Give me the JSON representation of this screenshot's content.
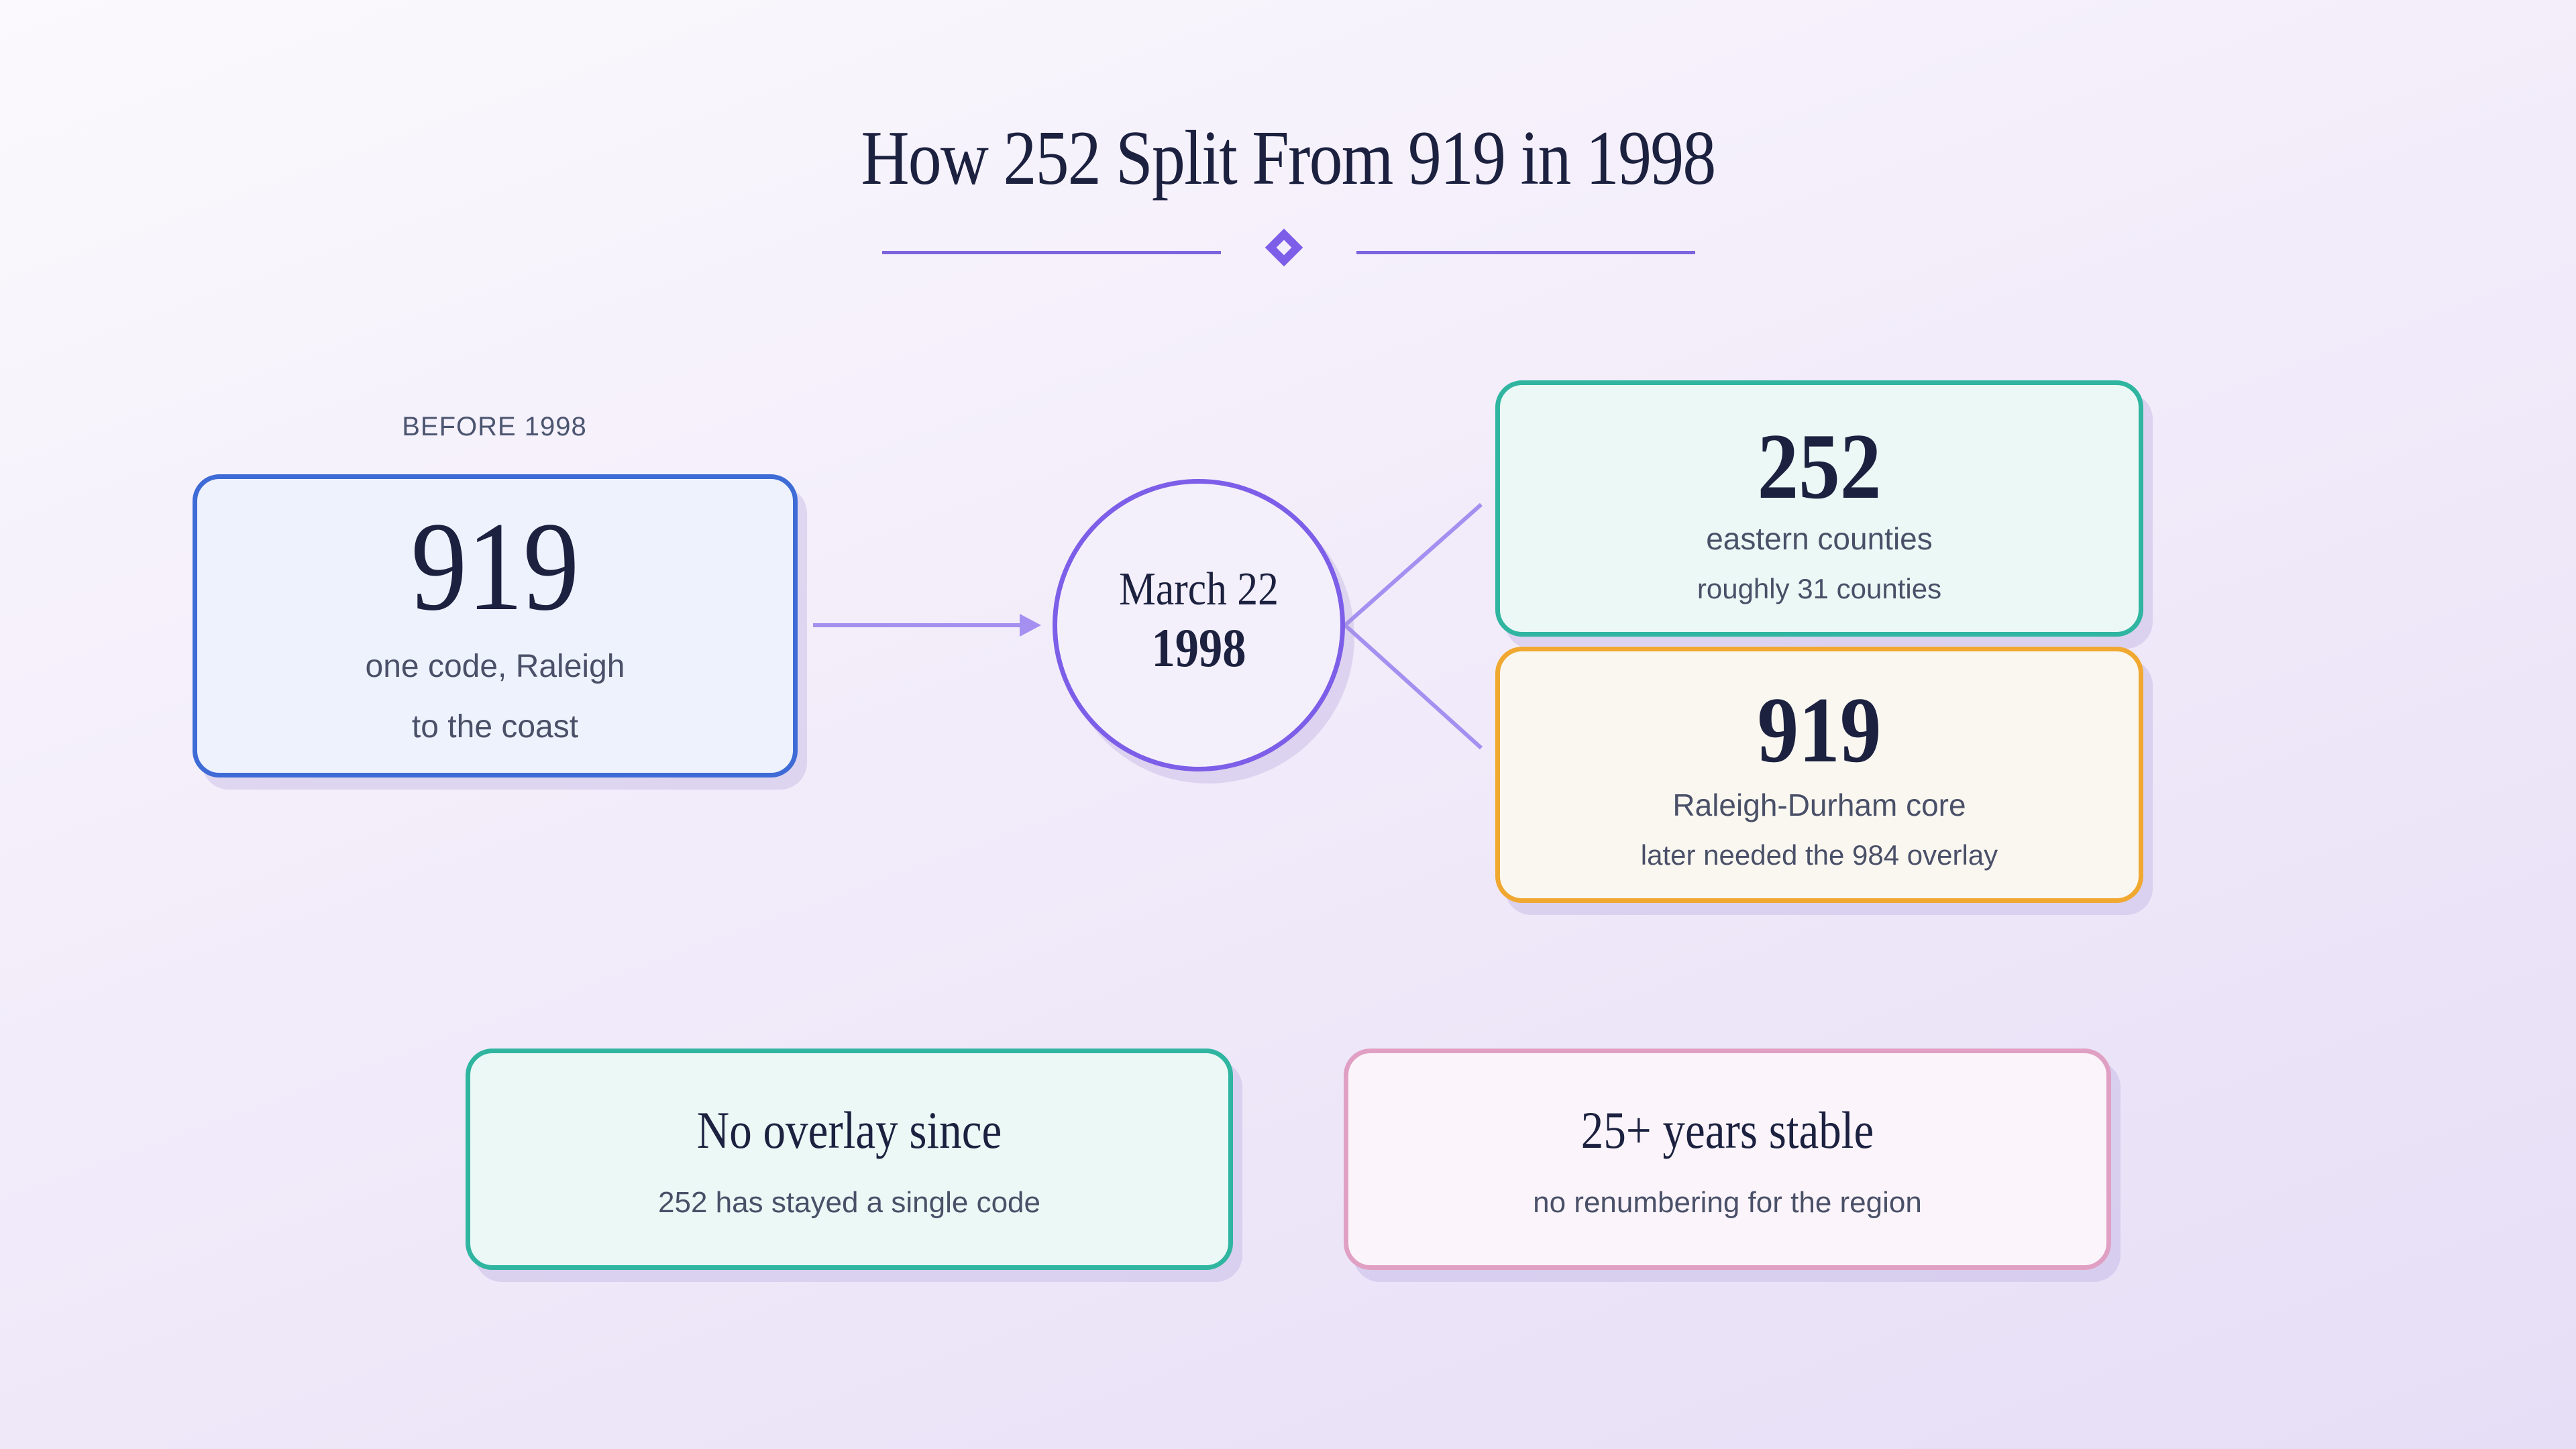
{
  "title": "How 252 Split From 919 in 1998",
  "before": {
    "label": "BEFORE 1998",
    "code": "919",
    "description_line1": "one code, Raleigh",
    "description_line2": "to the coast"
  },
  "split_event": {
    "month_day": "March 22",
    "year": "1998"
  },
  "after": [
    {
      "code": "252",
      "primary": "eastern counties",
      "secondary": "roughly 31 counties",
      "border_color": "#2fb5a0"
    },
    {
      "code": "919",
      "primary": "Raleigh-Durham core",
      "secondary": "later needed the 984 overlay",
      "border_color": "#f0a830"
    }
  ],
  "stats": [
    {
      "title": "No overlay since",
      "description": "252 has stayed a single code"
    },
    {
      "title": "25+ years stable",
      "description": "no renumbering for the region"
    }
  ],
  "colors": {
    "accent": "#7d5ee8",
    "before_border": "#3f6bd6",
    "teal": "#2fb5a0",
    "orange": "#f0a830",
    "pink": "#e0a0c4",
    "text_dark": "#1c2140"
  }
}
